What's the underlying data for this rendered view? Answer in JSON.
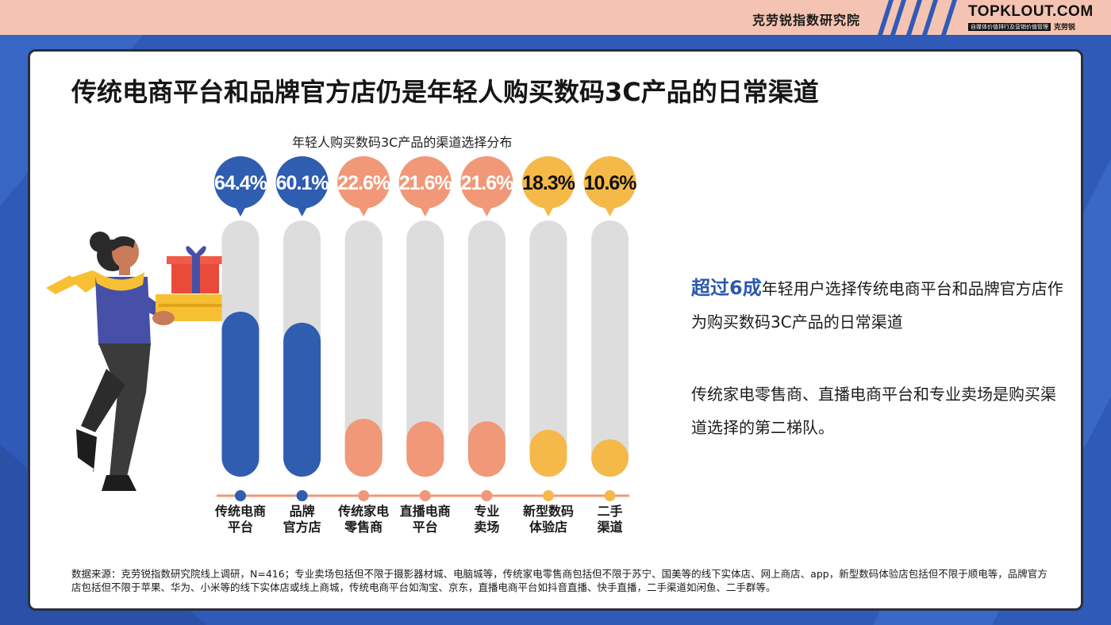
{
  "header": {
    "org_name": "克劳锐指数研究院",
    "brand_logo": "TOPKLOUT.COM",
    "brand_tagline": "自媒体价值排行及营销价值管理",
    "brand_cn": "克劳锐"
  },
  "page": {
    "title": "传统电商平台和品牌官方店仍是年轻人购买数码3C产品的日常渠道"
  },
  "colors": {
    "blue": "#2f5db0",
    "salmon": "#f09878",
    "yellow": "#f5b94a",
    "track": "#dddddd"
  },
  "chart_data": {
    "type": "bar",
    "title": "年轻人购买数码3C产品的渠道选择分布",
    "categories": [
      [
        "传统电商",
        "平台"
      ],
      [
        "品牌",
        "官方店"
      ],
      [
        "传统家电",
        "零售商"
      ],
      [
        "直播电商",
        "平台"
      ],
      [
        "专业",
        "卖场"
      ],
      [
        "新型数码",
        "体验店"
      ],
      [
        "二手",
        "渠道"
      ]
    ],
    "values": [
      64.4,
      60.1,
      22.6,
      21.6,
      21.6,
      18.3,
      10.6
    ],
    "data_labels": [
      "64.4%",
      "60.1%",
      "22.6%",
      "21.6%",
      "21.6%",
      "18.3%",
      "10.6%"
    ],
    "bar_colors": [
      "#2f5db0",
      "#2f5db0",
      "#f09878",
      "#f09878",
      "#f09878",
      "#f5b94a",
      "#f5b94a"
    ],
    "ylim": [
      0,
      100
    ],
    "unit": "%"
  },
  "description": {
    "highlight": "超过6成",
    "line1_rest": "年轻用户选择传统电商平台和品牌官方店作为购买数码3C产品的日常渠道",
    "line2": "传统家电零售商、直播电商平台和专业卖场是购买渠道选择的第二梯队。"
  },
  "footnote": "数据来源：克劳锐指数研究院线上调研，N=416；专业卖场包括但不限于摄影器材城、电脑城等，传统家电零售商包括但不限于苏宁、国美等的线下实体店、网上商店、app，新型数码体验店包括但不限于顺电等，品牌官方店包括但不限于苹果、华为、小米等的线下实体店或线上商城，传统电商平台如淘宝、京东，直播电商平台如抖音直播、快手直播，二手渠道如闲鱼、二手群等。"
}
